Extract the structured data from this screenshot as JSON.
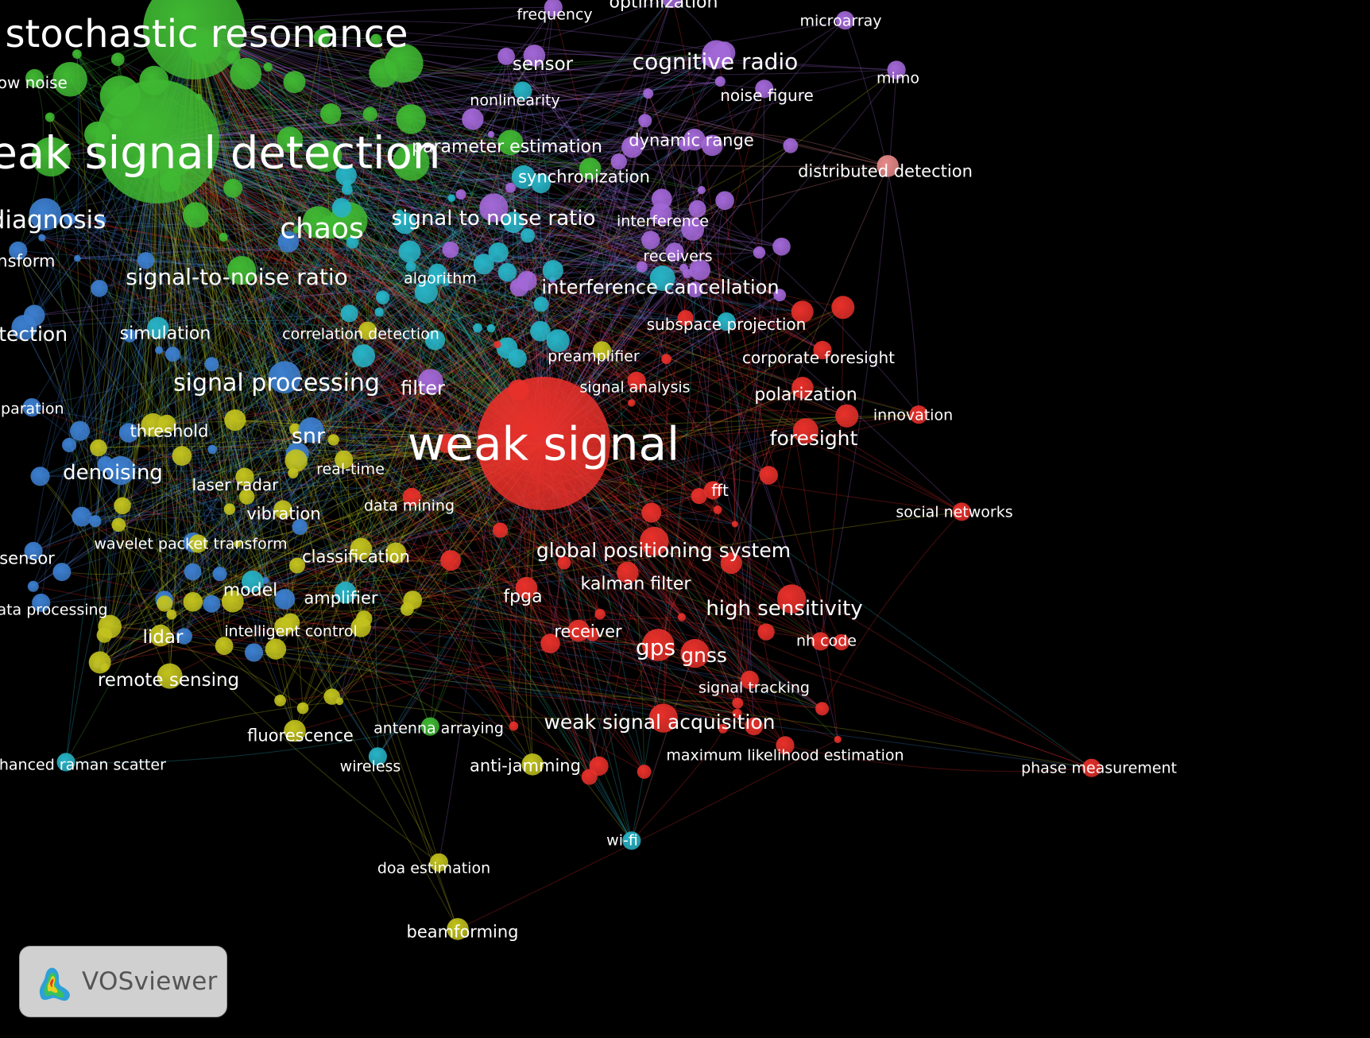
{
  "app": {
    "name": "VOSviewer"
  },
  "cluster_colors": {
    "green": "#3fb832",
    "purple": "#a368d8",
    "cyan": "#27b3c6",
    "blue": "#3c7fd0",
    "yellow": "#c2c21e",
    "red": "#e8302a",
    "salmon": "#e88a8a"
  },
  "terms": [
    {
      "label": "stochastic resonance",
      "cluster": "green",
      "weight": 1.0
    },
    {
      "label": "weak signal detection",
      "cluster": "green",
      "weight": 1.0
    },
    {
      "label": "low noise",
      "cluster": "green",
      "weight": 0.3
    },
    {
      "label": "chaos",
      "cluster": "green",
      "weight": 0.7
    },
    {
      "label": "signal-to-noise ratio",
      "cluster": "green",
      "weight": 0.6
    },
    {
      "label": "parameter estimation",
      "cluster": "green",
      "weight": 0.5
    },
    {
      "label": "synchronization",
      "cluster": "green",
      "weight": 0.4
    },
    {
      "label": "diagnosis",
      "cluster": "blue",
      "weight": 0.7
    },
    {
      "label": "transform",
      "cluster": "blue",
      "weight": 0.3
    },
    {
      "label": "detection",
      "cluster": "blue",
      "weight": 0.5
    },
    {
      "label": "separation",
      "cluster": "blue",
      "weight": 0.3
    },
    {
      "label": "simulation",
      "cluster": "cyan",
      "weight": 0.4
    },
    {
      "label": "signal processing",
      "cluster": "blue",
      "weight": 0.7
    },
    {
      "label": "snr",
      "cluster": "blue",
      "weight": 0.5
    },
    {
      "label": "denoising",
      "cluster": "blue",
      "weight": 0.6
    },
    {
      "label": "threshold",
      "cluster": "yellow",
      "weight": 0.3
    },
    {
      "label": "sensor",
      "cluster": "blue",
      "weight": 0.3
    },
    {
      "label": "data processing",
      "cluster": "blue",
      "weight": 0.3
    },
    {
      "label": "frequency",
      "cluster": "purple",
      "weight": 0.3
    },
    {
      "label": "optimization",
      "cluster": "purple",
      "weight": 0.4
    },
    {
      "label": "microarray",
      "cluster": "purple",
      "weight": 0.3
    },
    {
      "label": "sensor",
      "cluster": "purple",
      "weight": 0.4
    },
    {
      "label": "cognitive radio",
      "cluster": "purple",
      "weight": 0.6
    },
    {
      "label": "mimo",
      "cluster": "purple",
      "weight": 0.3
    },
    {
      "label": "nonlinearity",
      "cluster": "cyan",
      "weight": 0.3
    },
    {
      "label": "noise figure",
      "cluster": "purple",
      "weight": 0.3
    },
    {
      "label": "dynamic range",
      "cluster": "purple",
      "weight": 0.4
    },
    {
      "label": "signal to noise ratio",
      "cluster": "purple",
      "weight": 0.6
    },
    {
      "label": "interference",
      "cluster": "purple",
      "weight": 0.4
    },
    {
      "label": "algorithm",
      "cluster": "cyan",
      "weight": 0.3
    },
    {
      "label": "receivers",
      "cluster": "purple",
      "weight": 0.3
    },
    {
      "label": "interference cancellation",
      "cluster": "cyan",
      "weight": 0.5
    },
    {
      "label": "filter",
      "cluster": "purple",
      "weight": 0.5
    },
    {
      "label": "correlation detection",
      "cluster": "yellow",
      "weight": 0.3
    },
    {
      "label": "distributed detection",
      "cluster": "salmon",
      "weight": 0.4
    },
    {
      "label": "subspace projection",
      "cluster": "cyan",
      "weight": 0.3
    },
    {
      "label": "preamplifier",
      "cluster": "yellow",
      "weight": 0.3
    },
    {
      "label": "corporate foresight",
      "cluster": "red",
      "weight": 0.3
    },
    {
      "label": "signal analysis",
      "cluster": "red",
      "weight": 0.3
    },
    {
      "label": "polarization",
      "cluster": "red",
      "weight": 0.4
    },
    {
      "label": "innovation",
      "cluster": "red",
      "weight": 0.3
    },
    {
      "label": "weak signal",
      "cluster": "red",
      "weight": 1.0
    },
    {
      "label": "foresight",
      "cluster": "red",
      "weight": 0.5
    },
    {
      "label": "real-time",
      "cluster": "yellow",
      "weight": 0.3
    },
    {
      "label": "laser radar",
      "cluster": "yellow",
      "weight": 0.3
    },
    {
      "label": "data mining",
      "cluster": "red",
      "weight": 0.3
    },
    {
      "label": "vibration",
      "cluster": "yellow",
      "weight": 0.3
    },
    {
      "label": "fft",
      "cluster": "red",
      "weight": 0.3
    },
    {
      "label": "social networks",
      "cluster": "red",
      "weight": 0.3
    },
    {
      "label": "wavelet packet transform",
      "cluster": "yellow",
      "weight": 0.3
    },
    {
      "label": "classification",
      "cluster": "yellow",
      "weight": 0.4
    },
    {
      "label": "global positioning system",
      "cluster": "red",
      "weight": 0.6
    },
    {
      "label": "kalman filter",
      "cluster": "red",
      "weight": 0.4
    },
    {
      "label": "model",
      "cluster": "cyan",
      "weight": 0.4
    },
    {
      "label": "amplifier",
      "cluster": "cyan",
      "weight": 0.4
    },
    {
      "label": "fpga",
      "cluster": "red",
      "weight": 0.4
    },
    {
      "label": "high sensitivity",
      "cluster": "red",
      "weight": 0.6
    },
    {
      "label": "lidar",
      "cluster": "yellow",
      "weight": 0.4
    },
    {
      "label": "intelligent control",
      "cluster": "yellow",
      "weight": 0.3
    },
    {
      "label": "receiver",
      "cluster": "red",
      "weight": 0.4
    },
    {
      "label": "gps",
      "cluster": "red",
      "weight": 0.7
    },
    {
      "label": "gnss",
      "cluster": "red",
      "weight": 0.6
    },
    {
      "label": "nh code",
      "cluster": "red",
      "weight": 0.3
    },
    {
      "label": "remote sensing",
      "cluster": "yellow",
      "weight": 0.5
    },
    {
      "label": "signal tracking",
      "cluster": "red",
      "weight": 0.3
    },
    {
      "label": "fluorescence",
      "cluster": "yellow",
      "weight": 0.4
    },
    {
      "label": "antenna arraying",
      "cluster": "green",
      "weight": 0.3
    },
    {
      "label": "weak signal acquisition",
      "cluster": "red",
      "weight": 0.6
    },
    {
      "label": "maximum likelihood estimation",
      "cluster": "red",
      "weight": 0.3
    },
    {
      "label": "phase measurement",
      "cluster": "red",
      "weight": 0.3
    },
    {
      "label": "enhanced raman scatter",
      "cluster": "cyan",
      "weight": 0.3
    },
    {
      "label": "wireless",
      "cluster": "cyan",
      "weight": 0.3
    },
    {
      "label": "anti-jamming",
      "cluster": "yellow",
      "weight": 0.4
    },
    {
      "label": "wi-fi",
      "cluster": "cyan",
      "weight": 0.3
    },
    {
      "label": "doa estimation",
      "cluster": "yellow",
      "weight": 0.3
    },
    {
      "label": "beamforming",
      "cluster": "yellow",
      "weight": 0.4
    }
  ]
}
